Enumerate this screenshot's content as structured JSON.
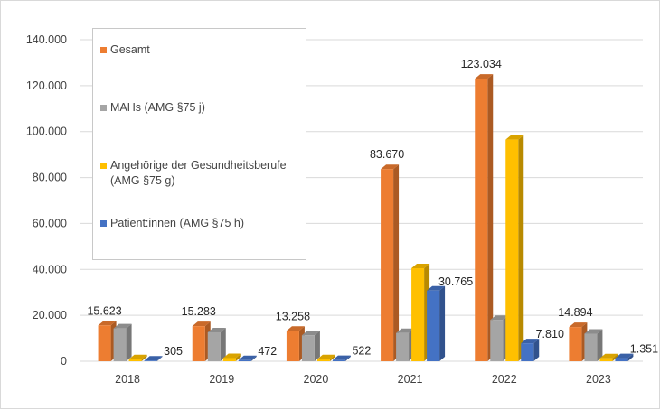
{
  "chart_data": {
    "type": "bar",
    "categories": [
      "2018",
      "2019",
      "2020",
      "2021",
      "2022",
      "2023"
    ],
    "series": [
      {
        "name": "Gesamt",
        "values": [
          15623,
          15283,
          13258,
          83670,
          123034,
          14894
        ],
        "color": "#ed7d31",
        "labels": [
          "15.623",
          "15.283",
          "13.258",
          "83.670",
          "123.034",
          "14.894"
        ]
      },
      {
        "name": "MAHs (AMG §75 j)",
        "values": [
          14300,
          12600,
          11300,
          12300,
          18000,
          12000
        ],
        "color": "#a5a5a5",
        "labels": [
          "",
          "",
          "",
          "",
          "",
          ""
        ]
      },
      {
        "name": "Angehörige der Gesundheitsberufe (AMG §75 g)",
        "values": [
          900,
          1400,
          900,
          40500,
          96500,
          1300
        ],
        "color": "#ffc000",
        "labels": [
          "",
          "",
          "",
          "",
          "",
          ""
        ]
      },
      {
        "name": "Patient:innen (AMG §75 h)",
        "values": [
          305,
          472,
          522,
          30765,
          7810,
          1351
        ],
        "color": "#4472c4",
        "labels": [
          "305",
          "472",
          "522",
          "30.765",
          "7.810",
          "1.351"
        ]
      }
    ],
    "ylim": [
      0,
      140000
    ],
    "y_ticks": [
      0,
      20000,
      40000,
      60000,
      80000,
      100000,
      120000,
      140000
    ],
    "y_tick_labels": [
      "0",
      "20.000",
      "40.000",
      "60.000",
      "80.000",
      "100.000",
      "120.000",
      "140.000"
    ],
    "grid": true,
    "legend_position": "top-left",
    "style": "3d-clustered"
  },
  "legend": {
    "items": [
      {
        "label": "Gesamt",
        "color": "#ed7d31"
      },
      {
        "label": "MAHs (AMG §75 j)",
        "color": "#a5a5a5"
      },
      {
        "label": "Angehörige der Gesundheitsberufe (AMG §75 g)",
        "color": "#ffc000"
      },
      {
        "label": "Patient:innen (AMG §75 h)",
        "color": "#4472c4"
      }
    ]
  }
}
